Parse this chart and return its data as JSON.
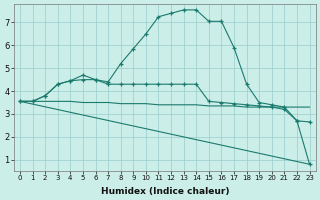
{
  "xlabel": "Humidex (Indice chaleur)",
  "background_color": "#cceee8",
  "grid_color": "#99cccc",
  "line_color": "#1a7a6e",
  "xlim": [
    -0.5,
    23.5
  ],
  "ylim": [
    0.5,
    7.8
  ],
  "yticks": [
    1,
    2,
    3,
    4,
    5,
    6,
    7
  ],
  "xticks": [
    0,
    1,
    2,
    3,
    4,
    5,
    6,
    7,
    8,
    9,
    10,
    11,
    12,
    13,
    14,
    15,
    16,
    17,
    18,
    19,
    20,
    21,
    22,
    23
  ],
  "curves": [
    {
      "x": [
        0,
        1,
        2,
        3,
        4,
        5,
        6,
        7,
        8,
        9,
        10,
        11,
        12,
        13,
        14,
        15,
        16,
        17,
        18,
        19,
        20,
        21,
        22,
        23
      ],
      "y": [
        3.55,
        3.55,
        3.8,
        4.3,
        4.45,
        4.7,
        4.5,
        4.4,
        5.2,
        5.85,
        6.5,
        7.25,
        7.4,
        7.55,
        7.55,
        7.05,
        7.05,
        5.9,
        4.3,
        3.5,
        3.4,
        3.3,
        2.7,
        2.65
      ],
      "marker": "+"
    },
    {
      "x": [
        0,
        1,
        2,
        3,
        4,
        5,
        6,
        7,
        8,
        9,
        10,
        11,
        12,
        13,
        14,
        15,
        16,
        17,
        18,
        19,
        20,
        21,
        22,
        23
      ],
      "y": [
        3.55,
        3.55,
        3.8,
        4.3,
        4.45,
        4.5,
        4.5,
        4.3,
        4.3,
        4.3,
        4.3,
        4.3,
        4.3,
        4.3,
        4.3,
        3.55,
        3.5,
        3.45,
        3.4,
        3.35,
        3.3,
        3.2,
        2.7,
        0.8
      ],
      "marker": "+"
    },
    {
      "x": [
        0,
        1,
        2,
        3,
        4,
        5,
        6,
        7,
        8,
        9,
        10,
        11,
        12,
        13,
        14,
        15,
        16,
        17,
        18,
        19,
        20,
        21,
        22,
        23
      ],
      "y": [
        3.55,
        3.55,
        3.55,
        3.55,
        3.55,
        3.5,
        3.5,
        3.5,
        3.45,
        3.45,
        3.45,
        3.4,
        3.4,
        3.4,
        3.4,
        3.35,
        3.35,
        3.35,
        3.3,
        3.3,
        3.3,
        3.3,
        3.3,
        3.3
      ],
      "marker": null
    },
    {
      "x": [
        0,
        23
      ],
      "y": [
        3.55,
        0.8
      ],
      "marker": null
    }
  ]
}
